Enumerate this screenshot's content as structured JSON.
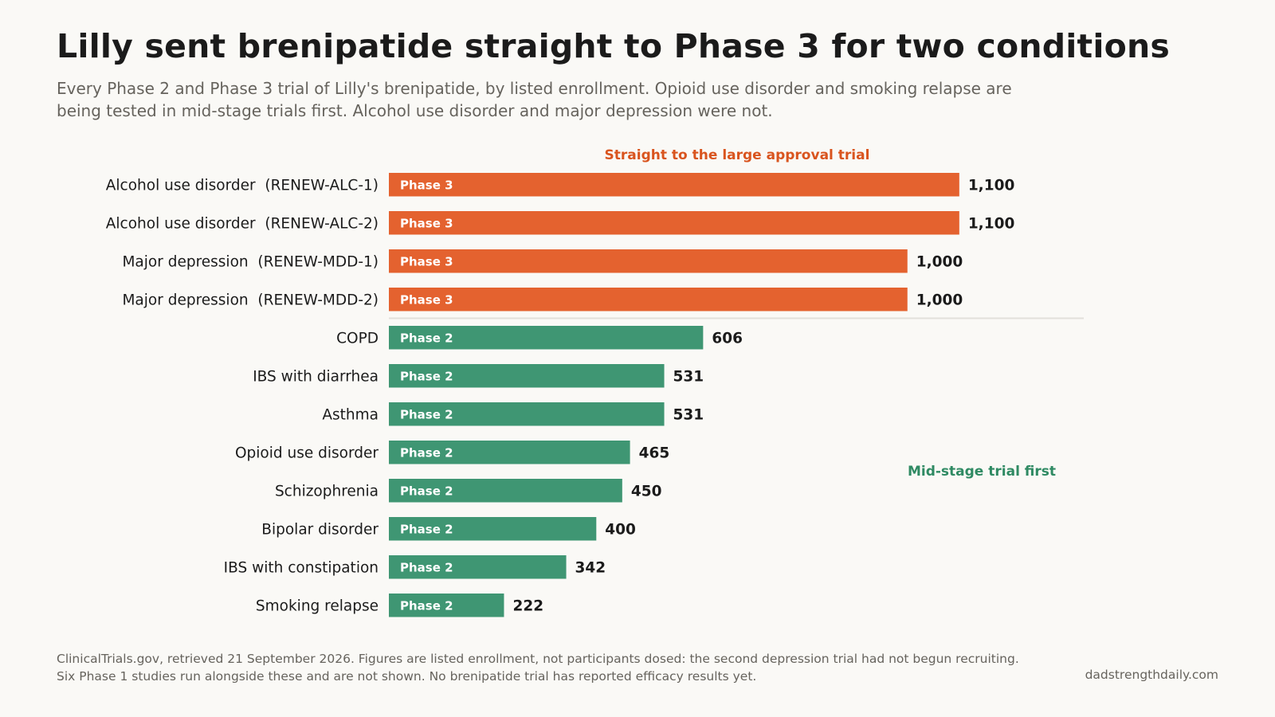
{
  "header": {
    "title": "Lilly sent brenipatide straight to Phase 3 for two conditions",
    "subtitle": "Every Phase 2 and Phase 3 trial of Lilly's brenipatide, by listed enrollment. Opioid use disorder and smoking relapse are being tested in mid-stage trials first. Alcohol use disorder and major depression were not."
  },
  "footer": {
    "note": "ClinicalTrials.gov, retrieved 21 September 2026. Figures are listed enrollment, not participants dosed: the second depression trial had not begun recruiting. Six Phase 1 studies run alongside these and are not shown. No brenipatide trial has reported efficacy results yet.",
    "credit": "dadstrengthdaily.com"
  },
  "chart_data": {
    "type": "bar",
    "orientation": "horizontal",
    "categories": [
      "Alcohol use disorder  (RENEW-ALC-1)",
      "Alcohol use disorder  (RENEW-ALC-2)",
      "Major depression  (RENEW-MDD-1)",
      "Major depression  (RENEW-MDD-2)",
      "COPD",
      "IBS with diarrhea",
      "Asthma",
      "Opioid use disorder",
      "Schizophrenia",
      "Bipolar disorder",
      "IBS with constipation",
      "Smoking relapse"
    ],
    "values": [
      1100,
      1100,
      1000,
      1000,
      606,
      531,
      531,
      465,
      450,
      400,
      342,
      222
    ],
    "value_labels": [
      "1,100",
      "1,100",
      "1,000",
      "1,000",
      "606",
      "531",
      "531",
      "465",
      "450",
      "400",
      "342",
      "222"
    ],
    "phases": [
      "Phase 3",
      "Phase 3",
      "Phase 3",
      "Phase 3",
      "Phase 2",
      "Phase 2",
      "Phase 2",
      "Phase 2",
      "Phase 2",
      "Phase 2",
      "Phase 2",
      "Phase 2"
    ],
    "xlim": [
      0,
      1340
    ],
    "grid": false,
    "colors": {
      "Phase 3": "#e4622f",
      "Phase 2": "#3f9673"
    },
    "annotations": [
      {
        "text": "Straight to the large approval trial",
        "color": "#d9541e",
        "group": "Phase 3"
      },
      {
        "text": "Mid-stage trial first",
        "color": "#2f8a63",
        "group": "Phase 2"
      }
    ]
  }
}
